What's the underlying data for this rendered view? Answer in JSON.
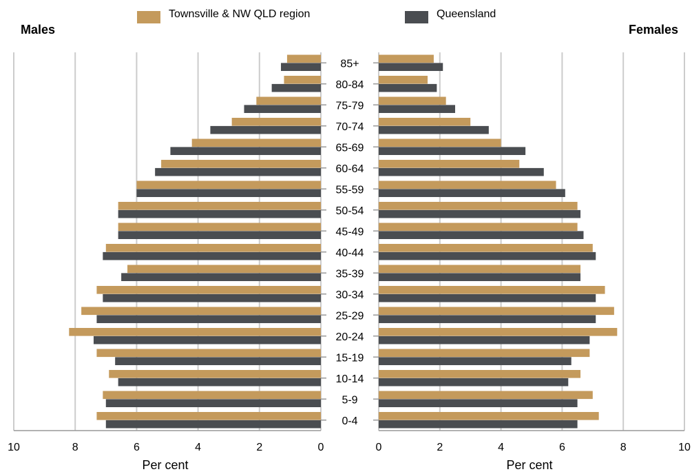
{
  "titles": {
    "left": "Males",
    "right": "Females"
  },
  "legend": [
    {
      "name": "Townsville & NW QLD region",
      "color": "#c49a5c"
    },
    {
      "name": "Queensland",
      "color": "#4a4d51"
    }
  ],
  "colors": {
    "grid": "#cccccc",
    "axis": "#999999"
  },
  "chart_data": {
    "type": "bar",
    "orientation": "horizontal-population-pyramid",
    "xlabel": "Per cent",
    "xlim": [
      0,
      10
    ],
    "xticks": [
      0,
      2,
      4,
      6,
      8,
      10
    ],
    "grid": true,
    "legend_position": "top",
    "categories": [
      "85+",
      "80-84",
      "75-79",
      "70-74",
      "65-69",
      "60-64",
      "55-59",
      "50-54",
      "45-49",
      "40-44",
      "35-39",
      "30-34",
      "25-29",
      "20-24",
      "15-19",
      "10-14",
      "5-9",
      "0-4"
    ],
    "panels": [
      {
        "title": "Males",
        "series": [
          {
            "name": "Townsville & NW QLD region",
            "values": [
              1.1,
              1.2,
              2.1,
              2.9,
              4.2,
              5.2,
              6.0,
              6.6,
              6.6,
              7.0,
              6.3,
              7.3,
              7.8,
              8.2,
              7.3,
              6.9,
              7.1,
              7.3
            ]
          },
          {
            "name": "Queensland",
            "values": [
              1.3,
              1.6,
              2.5,
              3.6,
              4.9,
              5.4,
              6.0,
              6.6,
              6.6,
              7.1,
              6.5,
              7.1,
              7.3,
              7.4,
              6.7,
              6.6,
              7.0,
              7.0
            ]
          }
        ]
      },
      {
        "title": "Females",
        "series": [
          {
            "name": "Townsville & NW QLD region",
            "values": [
              1.8,
              1.6,
              2.2,
              3.0,
              4.0,
              4.6,
              5.8,
              6.5,
              6.5,
              7.0,
              6.6,
              7.4,
              7.7,
              7.8,
              6.9,
              6.6,
              7.0,
              7.2
            ]
          },
          {
            "name": "Queensland",
            "values": [
              2.1,
              1.9,
              2.5,
              3.6,
              4.8,
              5.4,
              6.1,
              6.6,
              6.7,
              7.1,
              6.6,
              7.1,
              7.1,
              6.9,
              6.3,
              6.2,
              6.5,
              6.5
            ]
          }
        ]
      }
    ]
  }
}
